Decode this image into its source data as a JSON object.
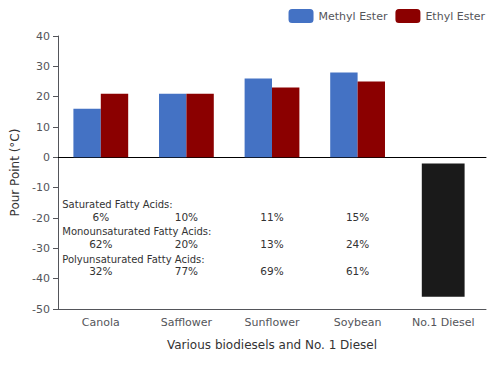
{
  "chart_data": {
    "type": "bar",
    "xlabel": "Various biodiesels and No. 1 Diesel",
    "ylabel": "Pour Point (°C)",
    "categories": [
      "Canola",
      "Safflower",
      "Sunflower",
      "Soybean",
      "No.1 Diesel"
    ],
    "series": [
      {
        "name": "Methyl Ester",
        "color": "#4472C4",
        "values": [
          16,
          21,
          26,
          28,
          null
        ]
      },
      {
        "name": "Ethyl Ester",
        "color": "#8B0000",
        "values": [
          21,
          21,
          23,
          25,
          null
        ]
      },
      {
        "color": "#1A1A1A",
        "values": [
          null,
          null,
          null,
          null,
          -2
        ],
        "bottoms": [
          null,
          null,
          null,
          null,
          -46
        ]
      }
    ],
    "ylim": [
      -50,
      40
    ],
    "yticks": [
      -50,
      -40,
      -30,
      -20,
      -10,
      0,
      10,
      20,
      30,
      40
    ],
    "legend": "upper right",
    "grid": false,
    "annotations": [
      {
        "text": "Saturated Fatty Acids:",
        "values": [
          "6%",
          "10%",
          "11%",
          "15%"
        ]
      },
      {
        "text": "Monounsaturated Fatty Acids:",
        "values": [
          "62%",
          "20%",
          "13%",
          "24%"
        ]
      },
      {
        "text": "Polyunsaturated Fatty Acids:",
        "values": [
          "32%",
          "77%",
          "69%",
          "61%"
        ]
      }
    ]
  }
}
